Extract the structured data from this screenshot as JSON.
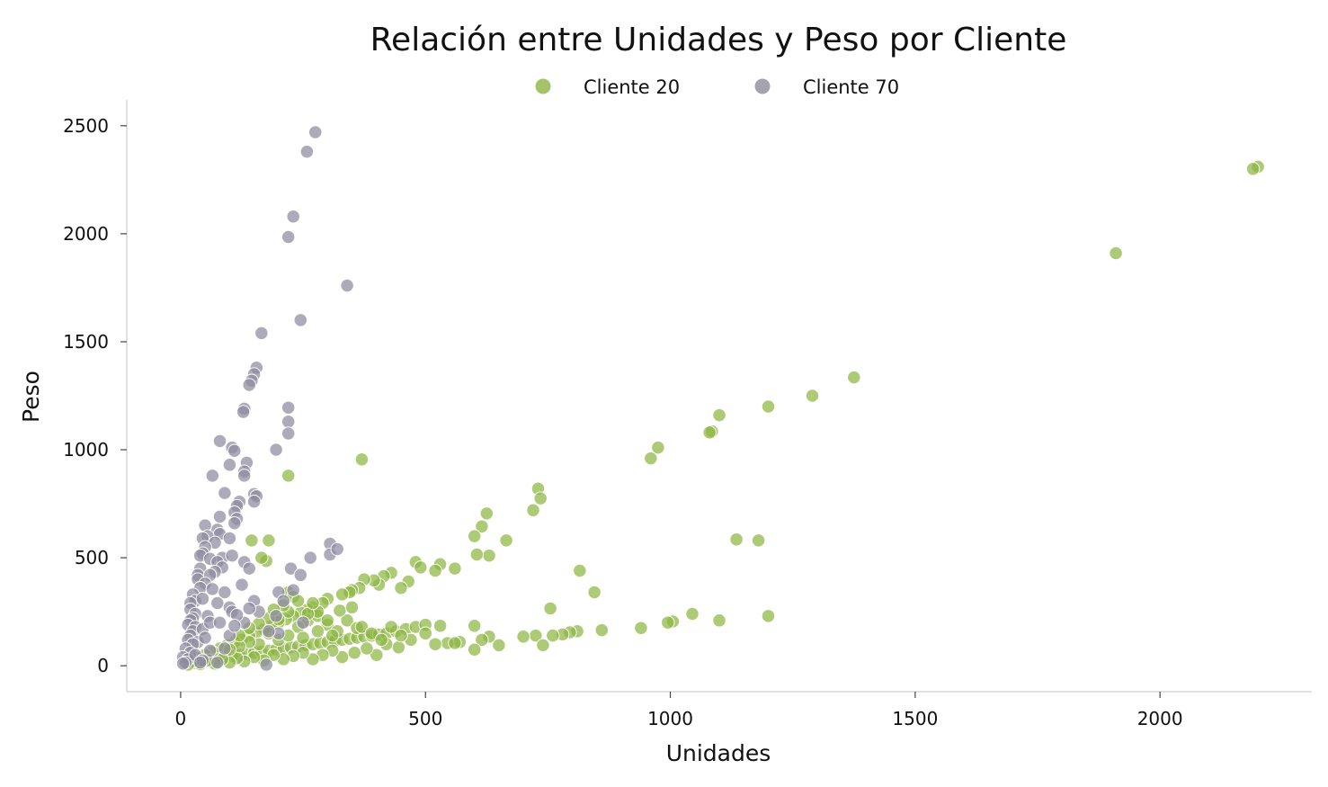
{
  "chart_data": {
    "type": "scatter",
    "title": "Relación entre Unidades y Peso por Cliente",
    "xlabel": "Unidades",
    "ylabel": "Peso",
    "xlim": [
      -110,
      2310
    ],
    "ylim": [
      -120,
      2620
    ],
    "xticks": [
      0,
      500,
      1000,
      1500,
      2000
    ],
    "yticks": [
      0,
      500,
      1000,
      1500,
      2000,
      2500
    ],
    "grid": false,
    "legend_position": "top-center",
    "series": [
      {
        "name": "Cliente 20",
        "color": "#8db543",
        "points": [
          [
            2200,
            2310
          ],
          [
            2190,
            2300
          ],
          [
            1910,
            1910
          ],
          [
            1375,
            1335
          ],
          [
            1290,
            1250
          ],
          [
            1200,
            1200
          ],
          [
            1100,
            1160
          ],
          [
            1085,
            1085
          ],
          [
            1080,
            1080
          ],
          [
            975,
            1010
          ],
          [
            960,
            960
          ],
          [
            370,
            955
          ],
          [
            220,
            880
          ],
          [
            730,
            820
          ],
          [
            735,
            775
          ],
          [
            720,
            720
          ],
          [
            625,
            705
          ],
          [
            615,
            645
          ],
          [
            600,
            600
          ],
          [
            665,
            580
          ],
          [
            1135,
            585
          ],
          [
            1180,
            580
          ],
          [
            630,
            510
          ],
          [
            605,
            515
          ],
          [
            180,
            580
          ],
          [
            145,
            580
          ],
          [
            175,
            485
          ],
          [
            165,
            500
          ],
          [
            815,
            440
          ],
          [
            845,
            340
          ],
          [
            755,
            265
          ],
          [
            1200,
            230
          ],
          [
            1045,
            240
          ],
          [
            1100,
            210
          ],
          [
            1005,
            205
          ],
          [
            995,
            200
          ],
          [
            940,
            175
          ],
          [
            860,
            165
          ],
          [
            810,
            160
          ],
          [
            795,
            155
          ],
          [
            780,
            145
          ],
          [
            760,
            140
          ],
          [
            725,
            140
          ],
          [
            700,
            135
          ],
          [
            740,
            95
          ],
          [
            650,
            95
          ],
          [
            630,
            135
          ],
          [
            615,
            120
          ],
          [
            600,
            185
          ],
          [
            600,
            75
          ],
          [
            570,
            110
          ],
          [
            545,
            105
          ],
          [
            530,
            470
          ],
          [
            520,
            440
          ],
          [
            480,
            480
          ],
          [
            490,
            455
          ],
          [
            560,
            450
          ],
          [
            465,
            390
          ],
          [
            450,
            360
          ],
          [
            430,
            430
          ],
          [
            415,
            415
          ],
          [
            405,
            375
          ],
          [
            395,
            395
          ],
          [
            375,
            400
          ],
          [
            365,
            360
          ],
          [
            350,
            350
          ],
          [
            345,
            340
          ],
          [
            330,
            330
          ],
          [
            300,
            310
          ],
          [
            290,
            290
          ],
          [
            270,
            270
          ],
          [
            260,
            260
          ],
          [
            245,
            245
          ],
          [
            230,
            230
          ],
          [
            215,
            215
          ],
          [
            200,
            200
          ],
          [
            185,
            185
          ],
          [
            170,
            170
          ],
          [
            155,
            155
          ],
          [
            140,
            140
          ],
          [
            125,
            120
          ],
          [
            110,
            110
          ],
          [
            95,
            95
          ],
          [
            80,
            80
          ],
          [
            65,
            65
          ],
          [
            50,
            50
          ],
          [
            35,
            35
          ],
          [
            20,
            15
          ],
          [
            30,
            12
          ],
          [
            45,
            20
          ],
          [
            60,
            25
          ],
          [
            75,
            30
          ],
          [
            90,
            40
          ],
          [
            105,
            45
          ],
          [
            120,
            50
          ],
          [
            135,
            55
          ],
          [
            150,
            60
          ],
          [
            165,
            65
          ],
          [
            180,
            70
          ],
          [
            195,
            75
          ],
          [
            210,
            80
          ],
          [
            225,
            85
          ],
          [
            240,
            90
          ],
          [
            255,
            95
          ],
          [
            270,
            100
          ],
          [
            285,
            105
          ],
          [
            300,
            110
          ],
          [
            315,
            115
          ],
          [
            330,
            120
          ],
          [
            345,
            125
          ],
          [
            360,
            130
          ],
          [
            375,
            135
          ],
          [
            390,
            140
          ],
          [
            405,
            145
          ],
          [
            420,
            150
          ],
          [
            440,
            160
          ],
          [
            460,
            170
          ],
          [
            480,
            180
          ],
          [
            500,
            190
          ],
          [
            530,
            185
          ],
          [
            560,
            105
          ],
          [
            520,
            100
          ],
          [
            500,
            150
          ],
          [
            470,
            120
          ],
          [
            445,
            85
          ],
          [
            420,
            100
          ],
          [
            400,
            50
          ],
          [
            380,
            80
          ],
          [
            355,
            60
          ],
          [
            330,
            40
          ],
          [
            310,
            70
          ],
          [
            290,
            50
          ],
          [
            270,
            30
          ],
          [
            250,
            60
          ],
          [
            230,
            45
          ],
          [
            210,
            30
          ],
          [
            190,
            50
          ],
          [
            170,
            25
          ],
          [
            150,
            40
          ],
          [
            130,
            20
          ],
          [
            115,
            35
          ],
          [
            100,
            15
          ],
          [
            85,
            30
          ],
          [
            70,
            10
          ],
          [
            55,
            25
          ],
          [
            40,
            8
          ],
          [
            25,
            20
          ],
          [
            15,
            5
          ],
          [
            300,
            190
          ],
          [
            320,
            160
          ],
          [
            340,
            210
          ],
          [
            360,
            175
          ],
          [
            260,
            210
          ],
          [
            240,
            180
          ],
          [
            280,
            230
          ],
          [
            200,
            120
          ],
          [
            180,
            150
          ],
          [
            160,
            100
          ],
          [
            140,
            110
          ],
          [
            120,
            90
          ],
          [
            100,
            75
          ],
          [
            220,
            140
          ],
          [
            250,
            130
          ],
          [
            280,
            160
          ],
          [
            310,
            140
          ],
          [
            370,
            180
          ],
          [
            390,
            150
          ],
          [
            410,
            120
          ],
          [
            430,
            180
          ],
          [
            450,
            140
          ],
          [
            300,
            210
          ],
          [
            280,
            250
          ],
          [
            260,
            240
          ],
          [
            220,
            250
          ],
          [
            200,
            215
          ],
          [
            180,
            220
          ],
          [
            160,
            195
          ],
          [
            140,
            175
          ],
          [
            120,
            140
          ],
          [
            325,
            255
          ],
          [
            350,
            270
          ],
          [
            220,
            340
          ],
          [
            230,
            320
          ],
          [
            240,
            300
          ],
          [
            270,
            290
          ],
          [
            210,
            280
          ],
          [
            190,
            260
          ]
        ]
      },
      {
        "name": "Cliente 70",
        "color": "#8e8b9e",
        "points": [
          [
            275,
            2470
          ],
          [
            258,
            2380
          ],
          [
            230,
            2080
          ],
          [
            220,
            1985
          ],
          [
            340,
            1760
          ],
          [
            245,
            1600
          ],
          [
            165,
            1540
          ],
          [
            155,
            1380
          ],
          [
            150,
            1350
          ],
          [
            145,
            1320
          ],
          [
            140,
            1300
          ],
          [
            130,
            1190
          ],
          [
            128,
            1175
          ],
          [
            220,
            1195
          ],
          [
            220,
            1130
          ],
          [
            220,
            1075
          ],
          [
            80,
            1040
          ],
          [
            105,
            1010
          ],
          [
            110,
            995
          ],
          [
            195,
            1000
          ],
          [
            100,
            930
          ],
          [
            135,
            940
          ],
          [
            130,
            900
          ],
          [
            130,
            880
          ],
          [
            65,
            880
          ],
          [
            90,
            800
          ],
          [
            150,
            795
          ],
          [
            155,
            785
          ],
          [
            150,
            760
          ],
          [
            120,
            760
          ],
          [
            115,
            740
          ],
          [
            110,
            710
          ],
          [
            115,
            680
          ],
          [
            110,
            660
          ],
          [
            80,
            690
          ],
          [
            50,
            650
          ],
          [
            75,
            630
          ],
          [
            80,
            610
          ],
          [
            55,
            600
          ],
          [
            45,
            590
          ],
          [
            100,
            590
          ],
          [
            70,
            570
          ],
          [
            50,
            550
          ],
          [
            45,
            520
          ],
          [
            40,
            510
          ],
          [
            85,
            500
          ],
          [
            60,
            495
          ],
          [
            75,
            480
          ],
          [
            105,
            510
          ],
          [
            130,
            480
          ],
          [
            140,
            450
          ],
          [
            85,
            455
          ],
          [
            70,
            435
          ],
          [
            40,
            450
          ],
          [
            35,
            420
          ],
          [
            60,
            420
          ],
          [
            35,
            400
          ],
          [
            50,
            380
          ],
          [
            40,
            360
          ],
          [
            65,
            355
          ],
          [
            90,
            340
          ],
          [
            125,
            375
          ],
          [
            150,
            300
          ],
          [
            200,
            340
          ],
          [
            210,
            300
          ],
          [
            265,
            500
          ],
          [
            305,
            565
          ],
          [
            305,
            515
          ],
          [
            320,
            540
          ],
          [
            225,
            450
          ],
          [
            245,
            420
          ],
          [
            230,
            350
          ],
          [
            25,
            330
          ],
          [
            30,
            300
          ],
          [
            20,
            290
          ],
          [
            45,
            310
          ],
          [
            75,
            290
          ],
          [
            100,
            270
          ],
          [
            20,
            260
          ],
          [
            30,
            240
          ],
          [
            25,
            220
          ],
          [
            55,
            230
          ],
          [
            20,
            210
          ],
          [
            15,
            190
          ],
          [
            30,
            180
          ],
          [
            25,
            160
          ],
          [
            45,
            170
          ],
          [
            60,
            200
          ],
          [
            80,
            200
          ],
          [
            20,
            140
          ],
          [
            15,
            120
          ],
          [
            35,
            110
          ],
          [
            50,
            130
          ],
          [
            25,
            100
          ],
          [
            10,
            80
          ],
          [
            20,
            60
          ],
          [
            5,
            40
          ],
          [
            15,
            30
          ],
          [
            30,
            50
          ],
          [
            60,
            70
          ],
          [
            90,
            80
          ],
          [
            45,
            25
          ],
          [
            10,
            15
          ],
          [
            5,
            10
          ],
          [
            40,
            15
          ],
          [
            75,
            15
          ],
          [
            130,
            200
          ],
          [
            160,
            250
          ],
          [
            195,
            230
          ],
          [
            175,
            5
          ],
          [
            105,
            250
          ],
          [
            115,
            235
          ],
          [
            140,
            265
          ],
          [
            100,
            140
          ],
          [
            200,
            150
          ],
          [
            250,
            200
          ],
          [
            180,
            160
          ],
          [
            110,
            185
          ]
        ]
      }
    ]
  }
}
